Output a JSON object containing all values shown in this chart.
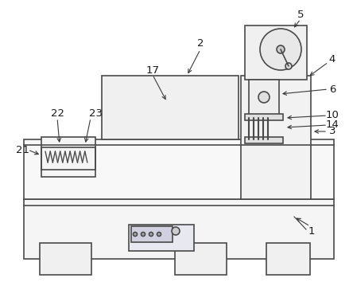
{
  "bg_color": "#ffffff",
  "line_color": "#4a4a4a",
  "line_width": 1.2,
  "annotation_lw": 0.8,
  "annotation_color": "#3a3a3a",
  "label_fontsize": 9.5
}
